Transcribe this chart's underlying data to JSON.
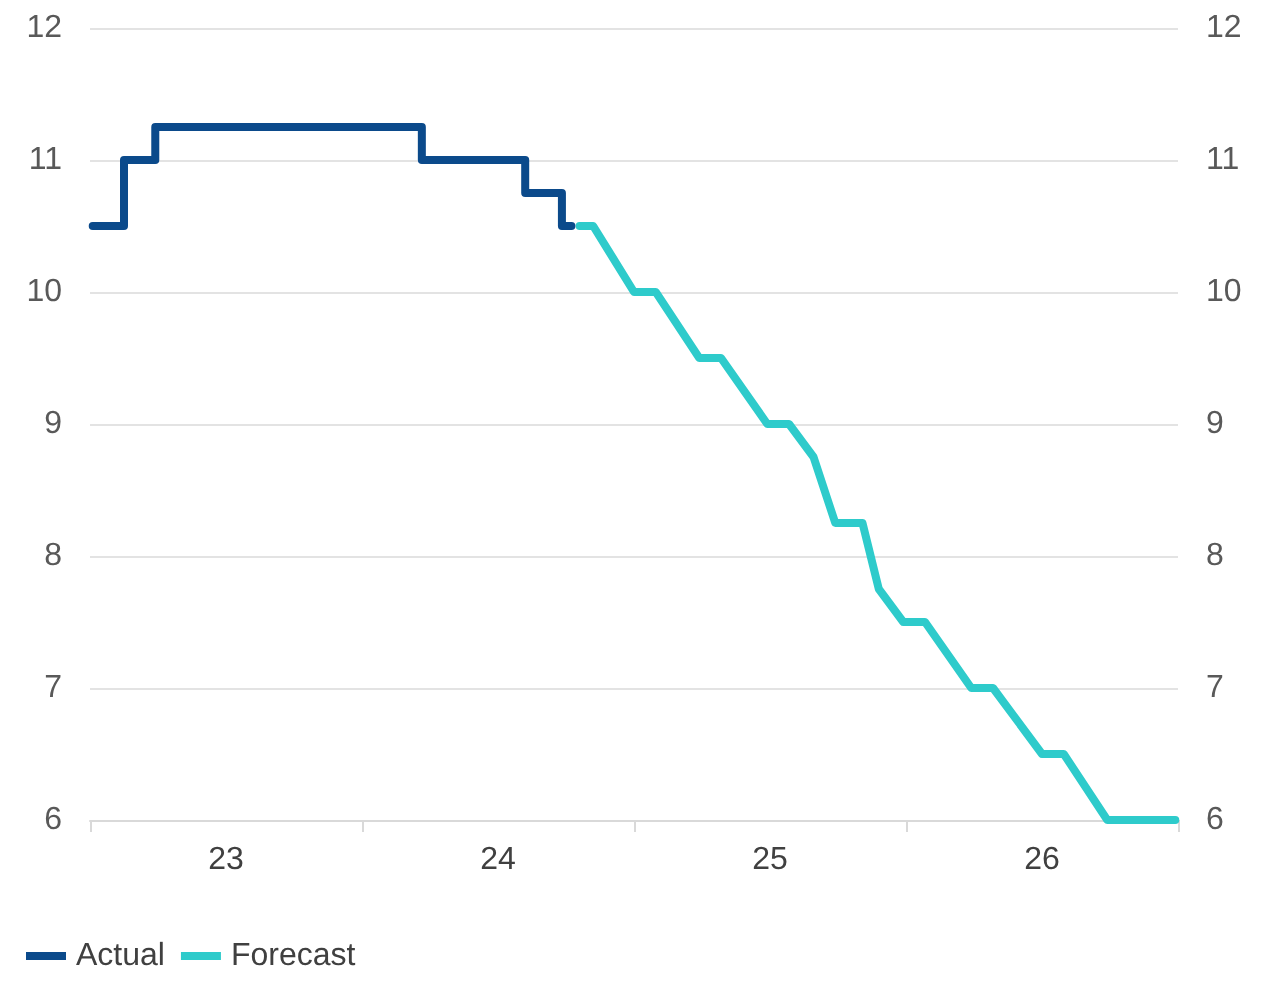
{
  "chart_data": {
    "type": "line",
    "series": [
      {
        "name": "Actual",
        "type": "step",
        "color": "#0b4a8b",
        "x": [
          22.51,
          22.625,
          22.74,
          23.72,
          24.1,
          24.235,
          24.27
        ],
        "values": [
          10.5,
          11,
          11.25,
          11,
          10.75,
          10.5,
          10.5
        ]
      },
      {
        "name": "Forecast",
        "color": "#2ecbcb",
        "x": [
          24.3,
          24.35,
          24.5,
          24.58,
          24.74,
          24.82,
          24.99,
          25.07,
          25.16,
          25.24,
          25.34,
          25.4,
          25.49,
          25.57,
          25.74,
          25.82,
          26.0,
          26.08,
          26.24,
          26.49
        ],
        "values": [
          10.5,
          10.5,
          10,
          10,
          9.5,
          9.5,
          9,
          9,
          8.75,
          8.25,
          8.25,
          7.75,
          7.5,
          7.5,
          7,
          7,
          6.5,
          6.5,
          6,
          6
        ]
      }
    ],
    "xlim": [
      22.5,
      26.5
    ],
    "xticks": [
      {
        "value": 22.5,
        "label": null
      },
      23,
      {
        "value": 23.5,
        "label": null
      },
      24,
      {
        "value": 24.5,
        "label": null
      },
      25,
      {
        "value": 25.5,
        "label": null
      },
      26,
      {
        "value": 26.5,
        "label": null
      }
    ],
    "ylim": [
      6,
      12
    ],
    "yticks": [
      6,
      7,
      8,
      9,
      10,
      11,
      12
    ],
    "y2lim": [
      6,
      12
    ],
    "y2ticks": [
      6,
      7,
      8,
      9,
      10,
      11,
      12
    ],
    "grid": "y",
    "legend": "bottom left",
    "marker": "none",
    "line_style": "solid"
  }
}
